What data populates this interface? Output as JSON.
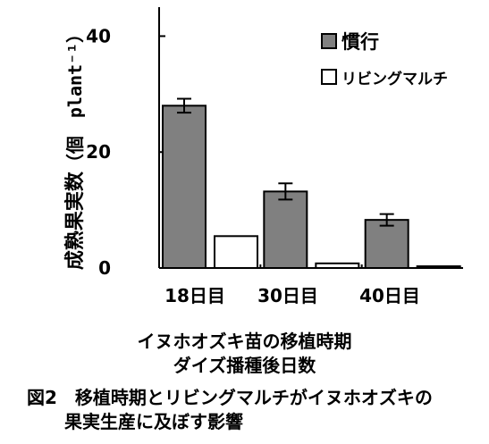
{
  "chart_data": {
    "type": "bar",
    "categories": [
      "18日目",
      "30日目",
      "40日目"
    ],
    "series": [
      {
        "name": "慣行",
        "values": [
          28.0,
          13.2,
          8.3
        ],
        "errors": [
          1.2,
          1.4,
          1.0
        ],
        "color": "#808080"
      },
      {
        "name": "リビングマルチ",
        "values": [
          5.5,
          0.8,
          0.3
        ],
        "color": "#ffffff"
      }
    ],
    "ylim": [
      0,
      45
    ],
    "yticks": [
      0,
      20,
      40
    ],
    "ylabel": "成熟果実数",
    "ylabel_unit": "（個　plant⁻¹）",
    "xlabel_line1": "イヌホオズキ苗の移植時期",
    "xlabel_line2": "ダイズ播種後日数",
    "legend_position": "top-right"
  },
  "caption": {
    "line1": "図2　移植時期とリビングマルチがイヌホオズキの",
    "line2": "果実生産に及ぼす影響"
  }
}
